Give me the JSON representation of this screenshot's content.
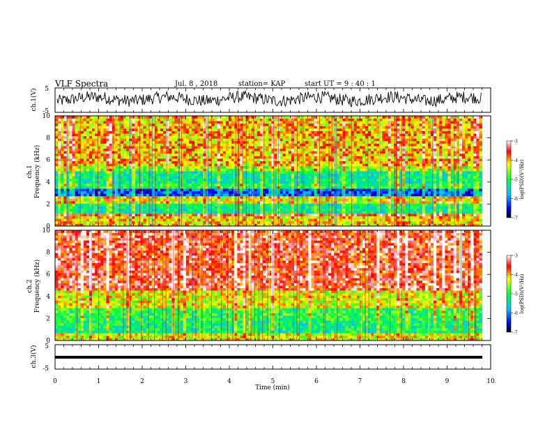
{
  "header": {
    "title": "VLF Spectra",
    "date": "Jul. 8 , 2018",
    "station": "station= KAP",
    "start": "start UT = 9 : 40 : 1"
  },
  "chart_data": [
    {
      "type": "line",
      "panel": "ch1-waveform",
      "ylabel": "ch.1(V)",
      "ylim": [
        -5,
        5
      ],
      "ytick_labels": [
        "5",
        "-5"
      ],
      "xlim": [
        0,
        10
      ],
      "series_color": "#000000",
      "description_values": {
        "baseline": 0.5,
        "amplitude": 2.5
      }
    },
    {
      "type": "heatmap",
      "panel": "ch1-spectrogram",
      "ylabel_line1": "ch.1",
      "ylabel_line2": "Frequency (kHz)",
      "ylim": [
        0,
        10
      ],
      "yticks": [
        "0",
        "2",
        "4",
        "6",
        "8",
        "10"
      ],
      "xlim": [
        0,
        10
      ],
      "data_end_min": 9.8,
      "colorbar": {
        "label": "log(PSD)(V²/Hz)",
        "ticks": [
          "-3",
          "-4",
          "-5",
          "-6",
          "-7"
        ],
        "range": [
          -7,
          -3
        ]
      },
      "bands_khz": [
        {
          "from": 0.0,
          "to": 0.8,
          "level": -4.2
        },
        {
          "from": 0.8,
          "to": 1.2,
          "level": -3.6
        },
        {
          "from": 1.2,
          "to": 2.1,
          "level": -5.3
        },
        {
          "from": 2.1,
          "to": 2.7,
          "level": -4.3
        },
        {
          "from": 2.7,
          "to": 3.4,
          "level": -6.2
        },
        {
          "from": 3.4,
          "to": 3.9,
          "level": -5.0
        },
        {
          "from": 3.9,
          "to": 5.0,
          "level": -5.3
        },
        {
          "from": 5.0,
          "to": 5.5,
          "level": -4.6
        },
        {
          "from": 5.5,
          "to": 10.0,
          "level": -4.1
        }
      ]
    },
    {
      "type": "heatmap",
      "panel": "ch2-spectrogram",
      "ylabel_line1": "ch.2",
      "ylabel_line2": "Frequency (kHz)",
      "ylim": [
        0,
        10
      ],
      "yticks": [
        "0",
        "2",
        "4",
        "6",
        "8",
        "10"
      ],
      "xlim": [
        0,
        10
      ],
      "data_end_min": 9.8,
      "colorbar": {
        "label": "log(PSD)(V²/Hz)",
        "ticks": [
          "-3",
          "-4",
          "-5",
          "-6",
          "-7"
        ],
        "range": [
          -7,
          -3
        ]
      },
      "bands_khz": [
        {
          "from": 0.0,
          "to": 0.7,
          "level": -4.3
        },
        {
          "from": 0.7,
          "to": 1.9,
          "level": -5.2
        },
        {
          "from": 1.9,
          "to": 3.0,
          "level": -5.0
        },
        {
          "from": 3.0,
          "to": 4.5,
          "level": -4.3
        },
        {
          "from": 4.5,
          "to": 10.0,
          "level": -3.5
        }
      ]
    },
    {
      "type": "line",
      "panel": "ch3-waveform",
      "ylabel": "ch.3(V)",
      "ylim": [
        -5,
        5
      ],
      "ytick_labels": [
        "5",
        "-5"
      ],
      "xlim": [
        0,
        10
      ],
      "xlabel": "Time (min)",
      "xticks": [
        "0",
        "1",
        "2",
        "3",
        "4",
        "5",
        "6",
        "7",
        "8",
        "9",
        "10"
      ],
      "series_color": "#000000",
      "description_values": {
        "baseline": 0.0,
        "amplitude": 0.0
      }
    }
  ]
}
